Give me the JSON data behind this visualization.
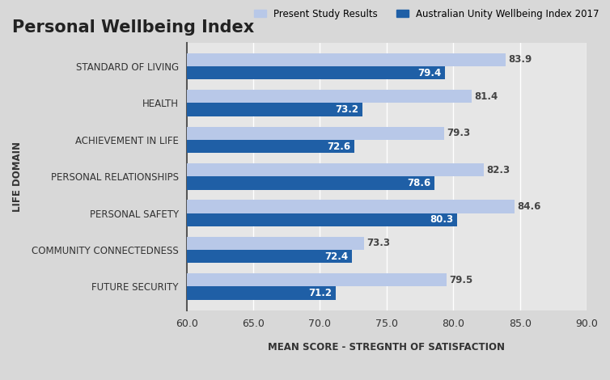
{
  "title": "Personal Wellbeing Index",
  "categories": [
    "FUTURE SECURITY",
    "COMMUNITY CONNECTEDNESS",
    "PERSONAL SAFETY",
    "PERSONAL RELATIONSHIPS",
    "ACHIEVEMENT IN LIFE",
    "HEALTH",
    "STANDARD OF LIVING"
  ],
  "present_study": [
    79.5,
    73.3,
    84.6,
    82.3,
    79.3,
    81.4,
    83.9
  ],
  "au_wellbeing": [
    71.2,
    72.4,
    80.3,
    78.6,
    72.6,
    73.2,
    79.4
  ],
  "color_present": "#b8c8e8",
  "color_au": "#1f5fa6",
  "xlabel": "MEAN SCORE - STREGNTH OF SATISFACTION",
  "ylabel": "LIFE DOMAIN",
  "legend_present": "Present Study Results",
  "legend_au": "Australian Unity Wellbeing Index 2017",
  "xlim": [
    60.0,
    90.0
  ],
  "xticks": [
    60.0,
    65.0,
    70.0,
    75.0,
    80.0,
    85.0,
    90.0
  ],
  "background_color": "#d8d8d8",
  "plot_bg_color": "#e6e6e6",
  "title_fontsize": 15,
  "label_fontsize": 8.5,
  "tick_fontsize": 9
}
